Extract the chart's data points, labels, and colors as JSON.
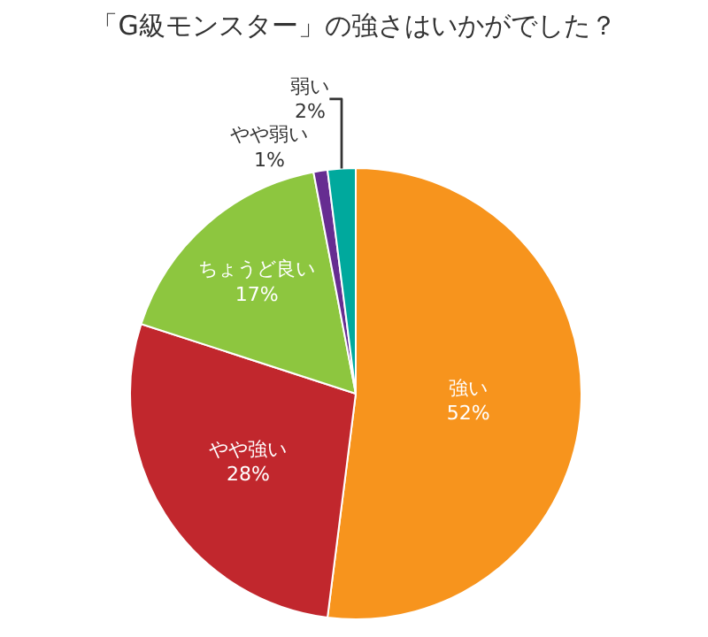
{
  "chart_data": {
    "type": "pie",
    "title": "「G級モンスター」の強さはいかがでした？",
    "categories": [
      "強い",
      "やや強い",
      "ちょうど良い",
      "やや弱い",
      "弱い"
    ],
    "values": [
      52,
      28,
      17,
      1,
      2
    ],
    "value_labels": [
      "52%",
      "28%",
      "17%",
      "1%",
      "2%"
    ],
    "colors": [
      "#f7941d",
      "#c1272d",
      "#8dc63f",
      "#662d91",
      "#00a99d"
    ],
    "legend": false
  }
}
